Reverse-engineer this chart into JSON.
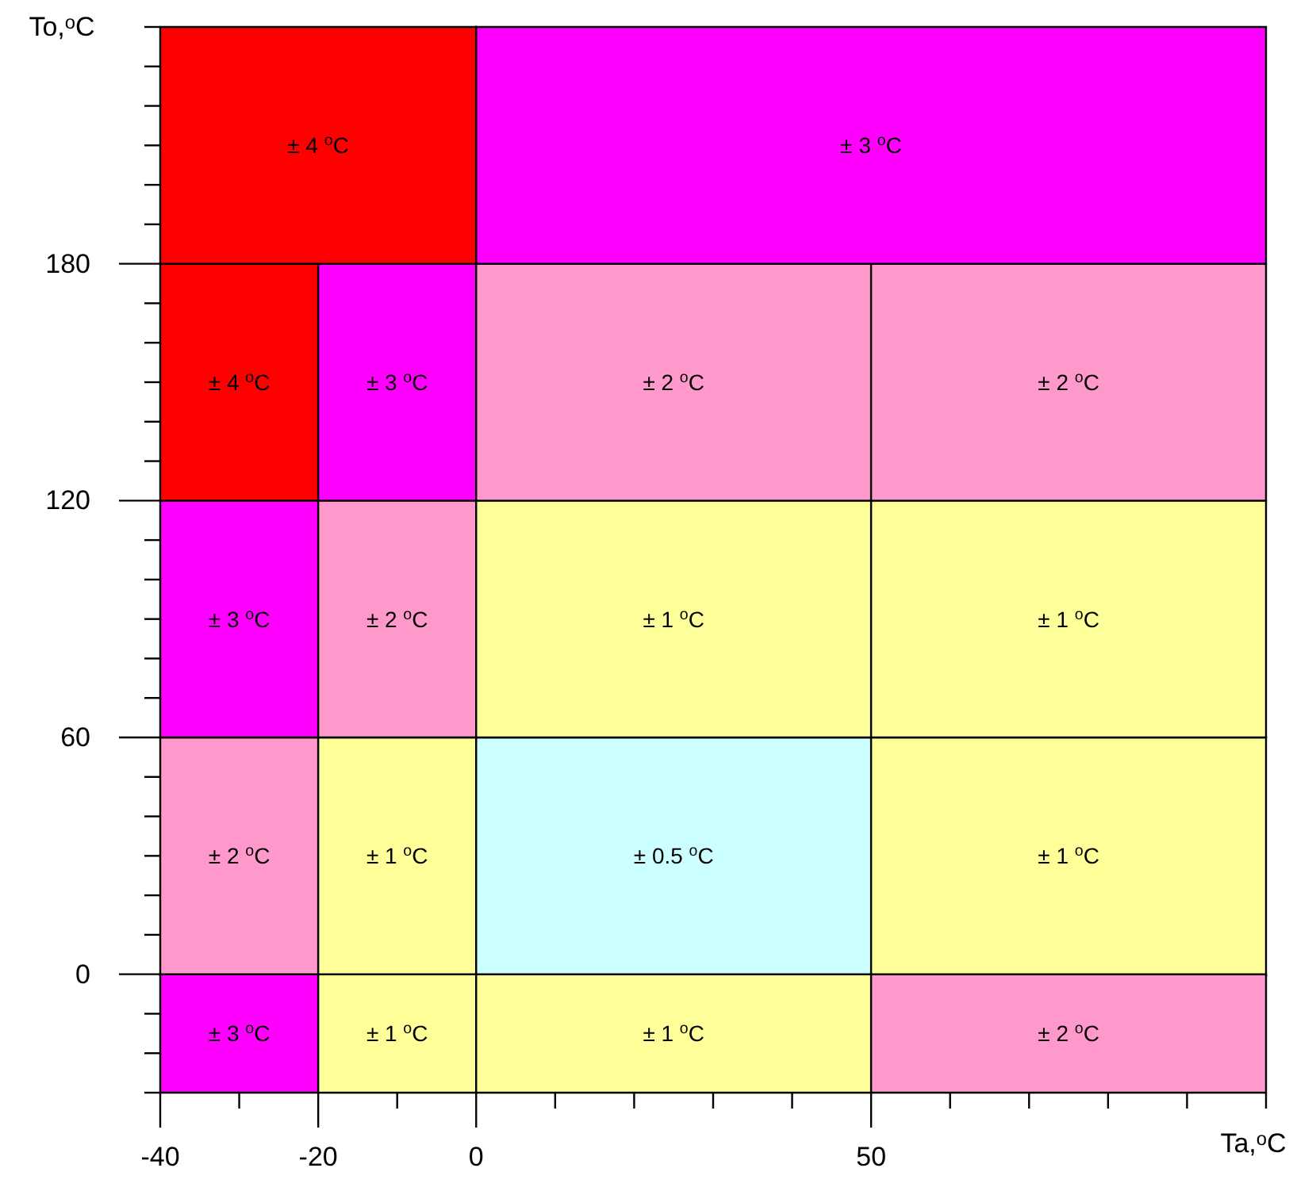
{
  "chart_data": {
    "type": "bar",
    "xlabel": "Ta,$^{o}$C",
    "ylabel": "To,$^{o}$C",
    "x": [
      -30,
      -10,
      25,
      75
    ],
    "series": [
      {
        "values": [
          30,
          30,
          30,
          30
        ],
        "base": [
          -30,
          -30,
          -30,
          -30
        ],
        "colors": [
          "#ff00ff",
          "#ffff99",
          "#ffff99",
          "#ff99cc"
        ]
      },
      {
        "values": [
          60,
          60,
          60,
          60
        ],
        "base": [
          0,
          0,
          0,
          0
        ],
        "colors": [
          "#ff99cc",
          "#ffff99",
          "#ccffff",
          "#ffff99"
        ]
      },
      {
        "values": [
          60,
          60,
          60,
          60
        ],
        "base": [
          60,
          60,
          60,
          60
        ],
        "colors": [
          "#ff00ff",
          "#ff99cc",
          "#ffff99",
          "#ffff99"
        ]
      },
      {
        "values": [
          60,
          60,
          60,
          60
        ],
        "base": [
          120,
          120,
          120,
          120
        ],
        "colors": [
          "#ff0000",
          "#ff00ff",
          "#ff99cc",
          "#ff99cc"
        ]
      },
      {
        "x": [
          -20,
          50
        ],
        "values": [
          60,
          60
        ],
        "base": [
          180,
          180
        ],
        "colors": [
          "#ff0000",
          "#ff00ff"
        ]
      }
    ],
    "annotations": [
      "± 4 $^{o}$C",
      "± 3 $^{o}$C",
      "± 4 $^{o}$C",
      "± 3 $^{o}$C",
      "± 2 $^{o}$C",
      "± 2 $^{o}$C",
      "± 3 $^{o}$C",
      "± 2 $^{o}$C",
      "± 1 $^{o}$C",
      "± 1 $^{o}$C",
      "± 2 $^{o}$C",
      "± 1 $^{o}$C",
      "± 0.5 $^{o}$C",
      "± 1 $^{o}$C",
      "± 3 $^{o}$C",
      "± 1 $^{o}$C",
      "± 1 $^{o}$C",
      "± 2 $^{o}$C"
    ],
    "xlim": [
      -40,
      100
    ],
    "xticks": [
      -40,
      {
        "value": -30,
        "label": null
      },
      -20,
      {
        "value": -10,
        "label": null
      },
      0,
      {
        "value": 10,
        "label": null
      },
      {
        "value": 20,
        "label": null
      },
      {
        "value": 30,
        "label": null
      },
      {
        "value": 40,
        "label": null
      },
      50,
      {
        "value": 60,
        "label": null
      },
      {
        "value": 70,
        "label": null
      },
      {
        "value": 80,
        "label": null
      },
      {
        "value": 90,
        "label": null
      },
      {
        "value": 100,
        "label": null
      }
    ],
    "ylim": [
      -30,
      240
    ],
    "yticks": [
      {
        "value": -30,
        "label": null
      },
      {
        "value": -20,
        "label": null
      },
      {
        "value": -10,
        "label": null
      },
      0,
      {
        "value": 10,
        "label": null
      },
      {
        "value": 20,
        "label": null
      },
      {
        "value": 30,
        "label": null
      },
      {
        "value": 40,
        "label": null
      },
      {
        "value": 50,
        "label": null
      },
      60,
      {
        "value": 70,
        "label": null
      },
      {
        "value": 80,
        "label": null
      },
      {
        "value": 90,
        "label": null
      },
      {
        "value": 100,
        "label": null
      },
      {
        "value": 110,
        "label": null
      },
      120,
      {
        "value": 130,
        "label": null
      },
      {
        "value": 140,
        "label": null
      },
      {
        "value": 150,
        "label": null
      },
      {
        "value": 160,
        "label": null
      },
      {
        "value": 170,
        "label": null
      },
      180,
      {
        "value": 190,
        "label": null
      },
      {
        "value": 200,
        "label": null
      },
      {
        "value": 210,
        "label": null
      },
      {
        "value": 220,
        "label": null
      },
      {
        "value": 230,
        "label": null
      },
      {
        "value": 240,
        "label": null
      }
    ]
  }
}
